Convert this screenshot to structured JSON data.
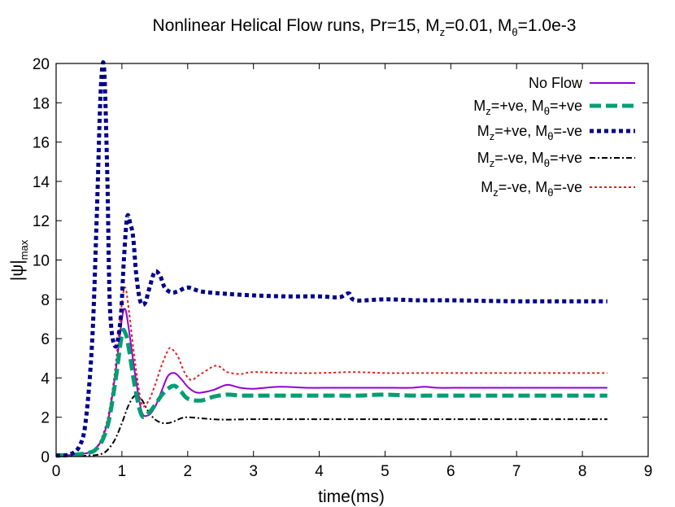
{
  "chart_data": {
    "type": "line",
    "title_parts": {
      "prefix": "Nonlinear Helical Flow runs, Pr=15, M",
      "sub1": "z",
      "mid": "=0.01, M",
      "sub2": "θ",
      "suffix": "=1.0e-3"
    },
    "xlabel": "time(ms)",
    "ylabel_parts": {
      "main": "|ψ|",
      "sub": "max"
    },
    "xlim": [
      0,
      9
    ],
    "ylim": [
      0,
      20
    ],
    "xticks": [
      "0",
      "1",
      "2",
      "3",
      "4",
      "5",
      "6",
      "7",
      "8",
      "9"
    ],
    "yticks": [
      "0",
      "2",
      "4",
      "6",
      "8",
      "10",
      "12",
      "14",
      "16",
      "18",
      "20"
    ],
    "grid": false,
    "legend_position": "top-right",
    "series": [
      {
        "name": "No Flow",
        "legend_parts": {
          "text": "No Flow"
        },
        "color": "#9400d3",
        "style": "solid",
        "x": [
          0,
          0.3,
          0.5,
          0.6,
          0.7,
          0.8,
          0.9,
          1.0,
          1.05,
          1.1,
          1.2,
          1.3,
          1.4,
          1.5,
          1.6,
          1.7,
          1.8,
          1.9,
          2.0,
          2.1,
          2.2,
          2.4,
          2.6,
          2.8,
          3.0,
          3.4,
          3.8,
          4.2,
          4.6,
          5.0,
          5.4,
          5.6,
          5.8,
          6.2,
          6.6,
          7.0,
          7.4,
          7.8,
          8.38
        ],
        "y": [
          0.05,
          0.1,
          0.2,
          0.4,
          0.9,
          2.0,
          4.2,
          7.0,
          7.5,
          6.6,
          4.2,
          2.3,
          2.1,
          2.5,
          3.3,
          4.1,
          4.25,
          3.95,
          3.55,
          3.3,
          3.25,
          3.4,
          3.65,
          3.5,
          3.45,
          3.55,
          3.5,
          3.5,
          3.5,
          3.5,
          3.5,
          3.55,
          3.5,
          3.5,
          3.5,
          3.5,
          3.5,
          3.5,
          3.5
        ]
      },
      {
        "name": "Mz=+ve, Mθ=+ve",
        "legend_parts": {
          "a": "M",
          "s1": "z",
          "b": "=+ve, M",
          "s2": "θ",
          "c": "=+ve"
        },
        "color": "#009e73",
        "style": "dashed-thick",
        "x": [
          0,
          0.3,
          0.5,
          0.6,
          0.7,
          0.8,
          0.9,
          1.0,
          1.05,
          1.1,
          1.2,
          1.3,
          1.4,
          1.5,
          1.6,
          1.7,
          1.8,
          1.9,
          2.0,
          2.2,
          2.4,
          2.6,
          2.8,
          3.0,
          3.4,
          3.8,
          4.2,
          4.6,
          5.0,
          5.4,
          5.8,
          6.2,
          6.6,
          7.0,
          7.4,
          7.8,
          8.38
        ],
        "y": [
          0.05,
          0.1,
          0.2,
          0.35,
          0.8,
          1.8,
          3.8,
          6.2,
          6.3,
          5.6,
          3.5,
          2.1,
          2.2,
          2.6,
          3.1,
          3.45,
          3.6,
          3.3,
          2.95,
          2.85,
          3.05,
          3.15,
          3.1,
          3.1,
          3.1,
          3.1,
          3.1,
          3.1,
          3.15,
          3.1,
          3.1,
          3.1,
          3.1,
          3.1,
          3.1,
          3.1,
          3.1
        ]
      },
      {
        "name": "Mz=+ve, Mθ=-ve",
        "legend_parts": {
          "a": "M",
          "s1": "z",
          "b": "=+ve, M",
          "s2": "θ",
          "c": "=-ve"
        },
        "color": "#00008b",
        "style": "dotted-thick",
        "x": [
          0,
          0.2,
          0.35,
          0.45,
          0.55,
          0.62,
          0.67,
          0.71,
          0.74,
          0.78,
          0.82,
          0.9,
          0.98,
          1.03,
          1.08,
          1.13,
          1.17,
          1.22,
          1.28,
          1.35,
          1.42,
          1.5,
          1.58,
          1.65,
          1.75,
          1.85,
          2.0,
          2.2,
          2.5,
          3.0,
          3.5,
          4.0,
          4.3,
          4.45,
          4.55,
          5.0,
          5.5,
          6.0,
          6.5,
          7.0,
          7.5,
          8.0,
          8.38
        ],
        "y": [
          0.05,
          0.1,
          0.5,
          1.8,
          6.0,
          12.5,
          18.0,
          20.0,
          19.0,
          14.0,
          7.5,
          5.6,
          7.0,
          10.0,
          12.2,
          11.8,
          11.2,
          9.2,
          7.9,
          7.8,
          8.6,
          9.4,
          9.2,
          8.6,
          8.35,
          8.4,
          8.6,
          8.4,
          8.3,
          8.2,
          8.15,
          8.15,
          8.1,
          8.3,
          7.95,
          8.0,
          7.95,
          7.95,
          7.92,
          7.9,
          7.9,
          7.9,
          7.9
        ]
      },
      {
        "name": "Mz=-ve, Mθ=+ve",
        "legend_parts": {
          "a": "M",
          "s1": "z",
          "b": "=-ve, M",
          "s2": "θ",
          "c": "=+ve"
        },
        "color": "#000000",
        "style": "dashdot",
        "x": [
          0,
          0.5,
          0.7,
          0.8,
          0.9,
          1.0,
          1.1,
          1.2,
          1.3,
          1.4,
          1.5,
          1.6,
          1.7,
          1.8,
          1.9,
          2.0,
          2.2,
          2.5,
          3.0,
          3.5,
          4.0,
          4.5,
          5.0,
          5.5,
          6.0,
          6.5,
          7.0,
          7.5,
          8.0,
          8.38
        ],
        "y": [
          0.02,
          0.05,
          0.15,
          0.4,
          0.9,
          1.7,
          2.6,
          3.1,
          2.9,
          2.3,
          1.9,
          1.72,
          1.7,
          1.8,
          1.95,
          2.0,
          1.95,
          1.88,
          1.9,
          1.9,
          1.9,
          1.9,
          1.9,
          1.9,
          1.9,
          1.9,
          1.9,
          1.9,
          1.9,
          1.9
        ]
      },
      {
        "name": "Mz=-ve, Mθ=-ve",
        "legend_parts": {
          "a": "M",
          "s1": "z",
          "b": "=-ve, M",
          "s2": "θ",
          "c": "=-ve"
        },
        "color": "#e0201b",
        "style": "dotted",
        "x": [
          0,
          0.3,
          0.5,
          0.6,
          0.7,
          0.8,
          0.9,
          1.0,
          1.05,
          1.1,
          1.2,
          1.3,
          1.4,
          1.5,
          1.6,
          1.7,
          1.75,
          1.85,
          1.95,
          2.05,
          2.2,
          2.4,
          2.5,
          2.6,
          2.8,
          3.0,
          3.5,
          4.0,
          4.5,
          5.0,
          5.5,
          6.0,
          6.5,
          7.0,
          7.5,
          8.0,
          8.38
        ],
        "y": [
          0.05,
          0.1,
          0.2,
          0.4,
          1.0,
          2.2,
          4.5,
          7.8,
          8.6,
          7.6,
          4.8,
          2.7,
          2.8,
          3.6,
          4.6,
          5.4,
          5.5,
          5.1,
          4.3,
          3.9,
          4.2,
          4.6,
          4.55,
          4.3,
          4.2,
          4.3,
          4.25,
          4.25,
          4.3,
          4.25,
          4.25,
          4.25,
          4.25,
          4.25,
          4.25,
          4.25,
          4.25
        ]
      }
    ]
  }
}
